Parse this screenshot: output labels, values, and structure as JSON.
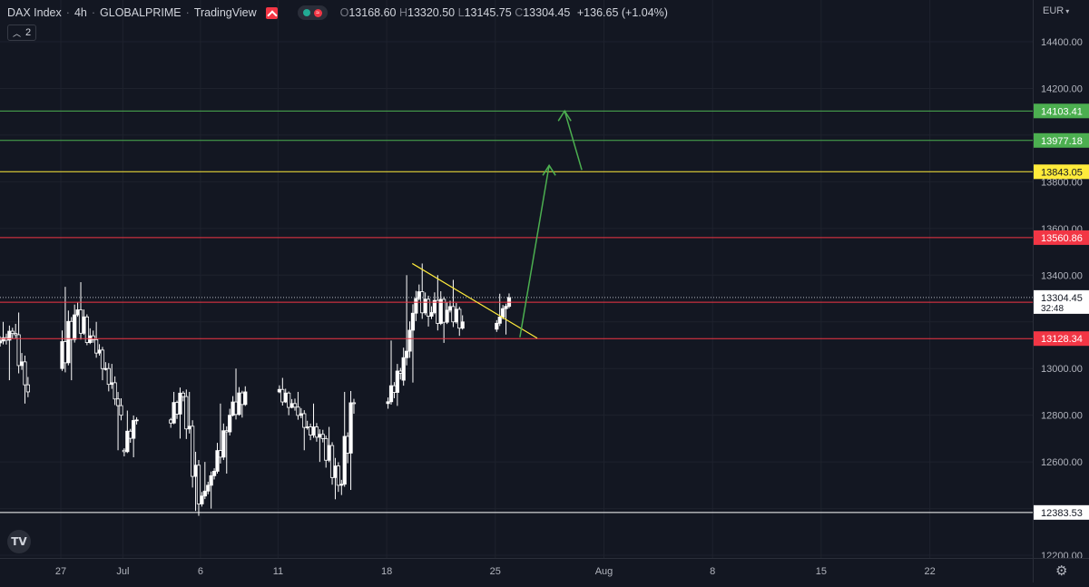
{
  "header": {
    "symbol": "DAX Index",
    "interval": "4h",
    "exchange": "GLOBALPRIME",
    "source": "TradingView",
    "ohlc": {
      "o_label": "O",
      "o": "13168.60",
      "h_label": "H",
      "h": "13320.50",
      "l_label": "L",
      "l": "13145.75",
      "c_label": "C",
      "c": "13304.45",
      "change": "+136.65 (+1.04%)"
    },
    "indicator_count": "2"
  },
  "axis": {
    "currency": "EUR",
    "price_ticks": [
      "14400.00",
      "14200.00",
      "13800.00",
      "13600.00",
      "13400.00",
      "13000.00",
      "12800.00",
      "12600.00",
      "12200.00"
    ],
    "time_ticks": [
      "27",
      "Jul",
      "6",
      "11",
      "18",
      "25",
      "Aug",
      "8",
      "15",
      "22"
    ]
  },
  "chart_data": {
    "type": "candlestick",
    "ylim": [
      12200,
      14400
    ],
    "levels": [
      {
        "value": 14103.41,
        "label": "14103.41",
        "color": "#4caf50"
      },
      {
        "value": 13977.18,
        "label": "13977.18",
        "color": "#4caf50"
      },
      {
        "value": 13843.05,
        "label": "13843.05",
        "color": "#ffeb3b"
      },
      {
        "value": 13560.86,
        "label": "13560.86",
        "color": "#f23645"
      },
      {
        "value": 13283.91,
        "label": "13283.91",
        "color": "#f23645"
      },
      {
        "value": 13128.34,
        "label": "13128.34",
        "color": "#f23645"
      },
      {
        "value": 12383.53,
        "label": "12383.53",
        "color": "#ffffff"
      }
    ],
    "last_price": {
      "value": 13304.45,
      "label": "13304.45",
      "countdown": "32:48"
    },
    "trend_line": {
      "from": [
        "Jul 20",
        13450
      ],
      "to": [
        "Jul 27",
        13130
      ],
      "color": "#ffeb3b"
    },
    "projection": {
      "points": [
        [
          "Jul 26",
          13130
        ],
        [
          "Jul 28",
          13843.05
        ],
        [
          "Jul 28",
          13843.05
        ],
        [
          "Jul 29",
          14103.41
        ]
      ],
      "color": "#4caf50"
    },
    "candles_approx": [
      {
        "date": "Jun 23",
        "o": 13110,
        "h": 13200,
        "l": 12950,
        "c": 13150
      },
      {
        "date": "Jun 24",
        "o": 13150,
        "h": 13240,
        "l": 12850,
        "c": 12900
      },
      {
        "date": "Jun 27",
        "o": 13000,
        "h": 13350,
        "l": 12950,
        "c": 13230
      },
      {
        "date": "Jun 28",
        "o": 13230,
        "h": 13370,
        "l": 13100,
        "c": 13140
      },
      {
        "date": "Jun 29",
        "o": 13140,
        "h": 13200,
        "l": 12950,
        "c": 13000
      },
      {
        "date": "Jun 30",
        "o": 13000,
        "h": 13020,
        "l": 12650,
        "c": 12800
      },
      {
        "date": "Jul 1",
        "o": 12650,
        "h": 12820,
        "l": 12620,
        "c": 12780
      },
      {
        "date": "Jul 4",
        "o": 12780,
        "h": 12900,
        "l": 12700,
        "c": 12880
      },
      {
        "date": "Jul 5",
        "o": 12880,
        "h": 12900,
        "l": 12390,
        "c": 12420
      },
      {
        "date": "Jul 6",
        "o": 12420,
        "h": 12600,
        "l": 12400,
        "c": 12560
      },
      {
        "date": "Jul 7",
        "o": 12560,
        "h": 12850,
        "l": 12550,
        "c": 12800
      },
      {
        "date": "Jul 8",
        "o": 12800,
        "h": 13000,
        "l": 12790,
        "c": 12900
      },
      {
        "date": "Jul 11",
        "o": 12900,
        "h": 12960,
        "l": 12800,
        "c": 12850
      },
      {
        "date": "Jul 12",
        "o": 12850,
        "h": 12900,
        "l": 12650,
        "c": 12750
      },
      {
        "date": "Jul 13",
        "o": 12750,
        "h": 12850,
        "l": 12600,
        "c": 12700
      },
      {
        "date": "Jul 14",
        "o": 12700,
        "h": 12750,
        "l": 12440,
        "c": 12500
      },
      {
        "date": "Jul 15",
        "o": 12500,
        "h": 12900,
        "l": 12480,
        "c": 12850
      },
      {
        "date": "Jul 18",
        "o": 12850,
        "h": 13120,
        "l": 12840,
        "c": 12980
      },
      {
        "date": "Jul 19",
        "o": 12950,
        "h": 13400,
        "l": 12940,
        "c": 13300
      },
      {
        "date": "Jul 20",
        "o": 13300,
        "h": 13450,
        "l": 13180,
        "c": 13240
      },
      {
        "date": "Jul 21",
        "o": 13240,
        "h": 13400,
        "l": 13110,
        "c": 13250
      },
      {
        "date": "Jul 22",
        "o": 13250,
        "h": 13380,
        "l": 13140,
        "c": 13200
      },
      {
        "date": "Jul 25",
        "o": 13168.6,
        "h": 13320.5,
        "l": 13145.75,
        "c": 13304.45
      }
    ]
  }
}
